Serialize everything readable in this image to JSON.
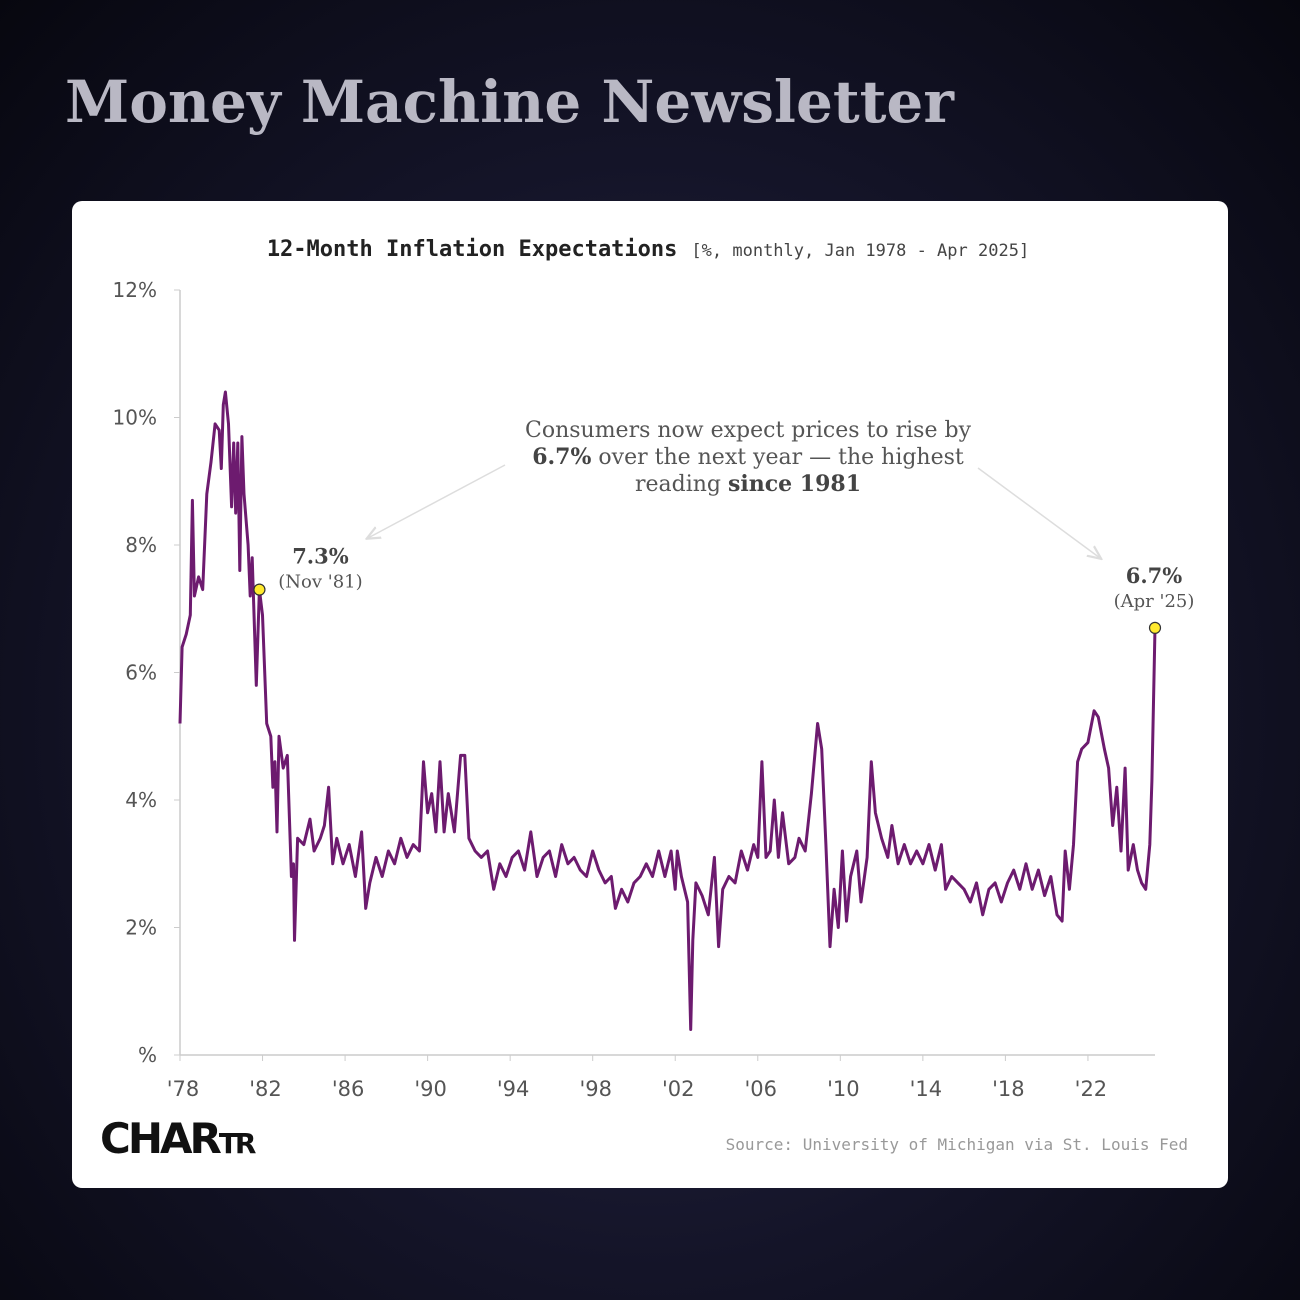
{
  "header": {
    "title": "Money Machine Newsletter"
  },
  "chart_data": {
    "type": "line",
    "title": "12-Month Inflation Expectations",
    "subtitle": "[%, monthly, Jan 1978 - Apr 2025]",
    "color": "#6d1b6f",
    "x": [
      1978.0,
      1978.1,
      1978.3,
      1978.5,
      1978.6,
      1978.7,
      1978.9,
      1979.1,
      1979.3,
      1979.5,
      1979.7,
      1979.9,
      1980.0,
      1980.1,
      1980.2,
      1980.35,
      1980.5,
      1980.6,
      1980.7,
      1980.8,
      1980.9,
      1981.0,
      1981.1,
      1981.3,
      1981.4,
      1981.5,
      1981.7,
      1981.85,
      1982.0,
      1982.2,
      1982.4,
      1982.5,
      1982.6,
      1982.7,
      1982.8,
      1983.0,
      1983.2,
      1983.4,
      1983.5,
      1983.55,
      1983.7,
      1984.0,
      1984.3,
      1984.5,
      1984.8,
      1985.0,
      1985.2,
      1985.4,
      1985.6,
      1985.9,
      1986.2,
      1986.5,
      1986.8,
      1987.0,
      1987.2,
      1987.5,
      1987.8,
      1988.1,
      1988.4,
      1988.7,
      1989.0,
      1989.3,
      1989.6,
      1989.8,
      1990.0,
      1990.2,
      1990.4,
      1990.6,
      1990.8,
      1991.0,
      1991.3,
      1991.6,
      1991.8,
      1992.0,
      1992.3,
      1992.6,
      1992.9,
      1993.2,
      1993.5,
      1993.8,
      1994.1,
      1994.4,
      1994.7,
      1995.0,
      1995.3,
      1995.6,
      1995.9,
      1996.2,
      1996.5,
      1996.8,
      1997.1,
      1997.4,
      1997.7,
      1998.0,
      1998.3,
      1998.6,
      1998.9,
      1999.1,
      1999.4,
      1999.7,
      2000.0,
      2000.3,
      2000.6,
      2000.9,
      2001.2,
      2001.5,
      2001.8,
      2002.0,
      2002.1,
      2002.3,
      2002.6,
      2002.75,
      2002.85,
      2003.0,
      2003.3,
      2003.6,
      2003.9,
      2004.1,
      2004.3,
      2004.6,
      2004.9,
      2005.2,
      2005.5,
      2005.8,
      2006.0,
      2006.2,
      2006.4,
      2006.6,
      2006.8,
      2007.0,
      2007.2,
      2007.5,
      2007.8,
      2008.0,
      2008.3,
      2008.6,
      2008.9,
      2009.1,
      2009.3,
      2009.5,
      2009.7,
      2009.9,
      2010.1,
      2010.3,
      2010.5,
      2010.8,
      2011.0,
      2011.3,
      2011.5,
      2011.7,
      2012.0,
      2012.3,
      2012.5,
      2012.8,
      2013.1,
      2013.4,
      2013.7,
      2014.0,
      2014.3,
      2014.6,
      2014.9,
      2015.1,
      2015.4,
      2015.7,
      2016.0,
      2016.3,
      2016.6,
      2016.9,
      2017.2,
      2017.5,
      2017.8,
      2018.1,
      2018.4,
      2018.7,
      2019.0,
      2019.3,
      2019.6,
      2019.9,
      2020.2,
      2020.5,
      2020.75,
      2020.9,
      2021.1,
      2021.3,
      2021.5,
      2021.7,
      2022.0,
      2022.3,
      2022.5,
      2022.8,
      2023.0,
      2023.2,
      2023.4,
      2023.6,
      2023.8,
      2023.95,
      2024.2,
      2024.4,
      2024.6,
      2024.8,
      2025.0,
      2025.1,
      2025.25
    ],
    "values": [
      5.2,
      6.4,
      6.6,
      6.9,
      8.7,
      7.2,
      7.5,
      7.3,
      8.8,
      9.3,
      9.9,
      9.8,
      9.2,
      10.2,
      10.4,
      9.9,
      8.6,
      9.6,
      8.5,
      9.6,
      7.6,
      9.7,
      8.8,
      8.0,
      7.2,
      7.8,
      5.8,
      7.3,
      6.9,
      5.2,
      5.0,
      4.2,
      4.6,
      3.5,
      5.0,
      4.5,
      4.7,
      2.8,
      3.0,
      1.8,
      3.4,
      3.3,
      3.7,
      3.2,
      3.4,
      3.6,
      4.2,
      3.0,
      3.4,
      3.0,
      3.3,
      2.8,
      3.5,
      2.3,
      2.7,
      3.1,
      2.8,
      3.2,
      3.0,
      3.4,
      3.1,
      3.3,
      3.2,
      4.6,
      3.8,
      4.1,
      3.5,
      4.6,
      3.5,
      4.1,
      3.5,
      4.7,
      4.7,
      3.4,
      3.2,
      3.1,
      3.2,
      2.6,
      3.0,
      2.8,
      3.1,
      3.2,
      2.9,
      3.5,
      2.8,
      3.1,
      3.2,
      2.8,
      3.3,
      3.0,
      3.1,
      2.9,
      2.8,
      3.2,
      2.9,
      2.7,
      2.8,
      2.3,
      2.6,
      2.4,
      2.7,
      2.8,
      3.0,
      2.8,
      3.2,
      2.8,
      3.2,
      2.6,
      3.2,
      2.8,
      2.4,
      0.4,
      1.8,
      2.7,
      2.5,
      2.2,
      3.1,
      1.7,
      2.6,
      2.8,
      2.7,
      3.2,
      2.9,
      3.3,
      3.1,
      4.6,
      3.1,
      3.2,
      4.0,
      3.1,
      3.8,
      3.0,
      3.1,
      3.4,
      3.2,
      4.1,
      5.2,
      4.8,
      3.3,
      1.7,
      2.6,
      2.0,
      3.2,
      2.1,
      2.8,
      3.2,
      2.4,
      3.1,
      4.6,
      3.8,
      3.4,
      3.1,
      3.6,
      3.0,
      3.3,
      3.0,
      3.2,
      3.0,
      3.3,
      2.9,
      3.3,
      2.6,
      2.8,
      2.7,
      2.6,
      2.4,
      2.7,
      2.2,
      2.6,
      2.7,
      2.4,
      2.7,
      2.9,
      2.6,
      3.0,
      2.6,
      2.9,
      2.5,
      2.8,
      2.2,
      2.1,
      3.2,
      2.6,
      3.3,
      4.6,
      4.8,
      4.9,
      5.4,
      5.3,
      4.8,
      4.5,
      3.6,
      4.2,
      3.2,
      4.5,
      2.9,
      3.3,
      2.9,
      2.7,
      2.6,
      3.3,
      4.3,
      6.7
    ],
    "xlim": [
      1978,
      2025.25
    ],
    "ylim": [
      0,
      12
    ],
    "xticks": [
      {
        "value": 1978,
        "label": "'78"
      },
      {
        "value": 1982,
        "label": "'82"
      },
      {
        "value": 1986,
        "label": "'86"
      },
      {
        "value": 1990,
        "label": "'90"
      },
      {
        "value": 1994,
        "label": "'94"
      },
      {
        "value": 1998,
        "label": "'98"
      },
      {
        "value": 2002,
        "label": "'02"
      },
      {
        "value": 2006,
        "label": "'06"
      },
      {
        "value": 2010,
        "label": "'10"
      },
      {
        "value": 2014,
        "label": "'14"
      },
      {
        "value": 2018,
        "label": "'18"
      },
      {
        "value": 2022,
        "label": "'22"
      }
    ],
    "yticks": [
      {
        "value": 0,
        "label": "%"
      },
      {
        "value": 2,
        "label": "2%"
      },
      {
        "value": 4,
        "label": "4%"
      },
      {
        "value": 6,
        "label": "6%"
      },
      {
        "value": 8,
        "label": "8%"
      },
      {
        "value": 10,
        "label": "10%"
      },
      {
        "value": 12,
        "label": "12%"
      }
    ],
    "callouts": [
      {
        "x": 1981.85,
        "value": 7.3,
        "value_label": "7.3%",
        "date": "(Nov '81)"
      },
      {
        "x": 2025.25,
        "value": 6.7,
        "value_label": "6.7%",
        "date": "(Apr '25)"
      }
    ],
    "annotation": [
      "Consumers now expect prices to rise by ",
      "6.7%",
      " over the next year — the highest reading ",
      "since 1981"
    ],
    "source": "Source: University of Michigan via St. Louis Fed",
    "logo": [
      "CHAR",
      "TR"
    ]
  }
}
